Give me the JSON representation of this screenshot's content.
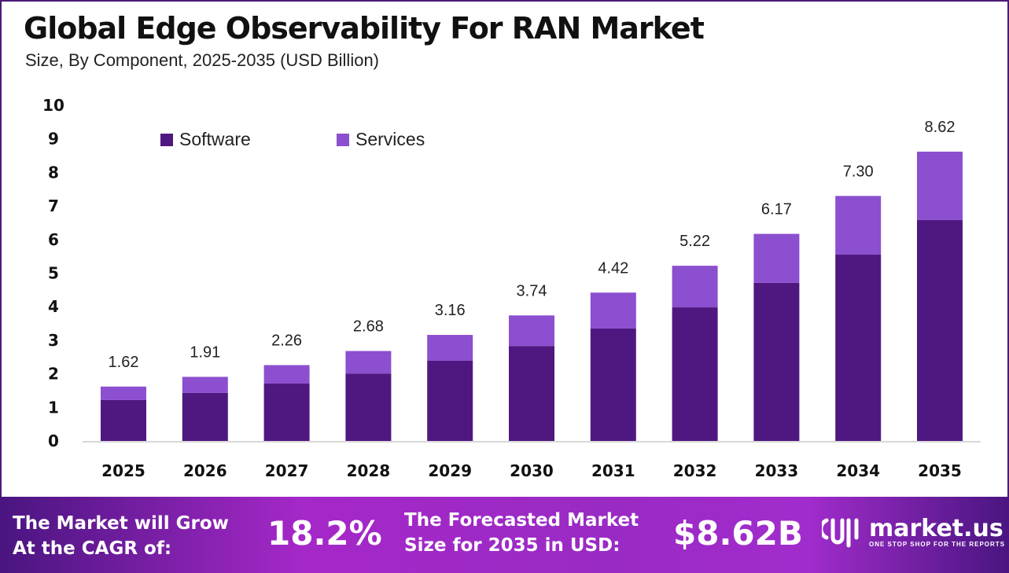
{
  "chart_data": {
    "type": "bar",
    "stacked": true,
    "title": "Global Edge Observability For RAN Market",
    "subtitle": "Size, By Component, 2025-2035 (USD Billion)",
    "categories": [
      "2025",
      "2026",
      "2027",
      "2028",
      "2029",
      "2030",
      "2031",
      "2032",
      "2033",
      "2034",
      "2035"
    ],
    "series": [
      {
        "name": "Software",
        "color": "#4f1880",
        "values": [
          1.22,
          1.43,
          1.71,
          2.01,
          2.39,
          2.83,
          3.35,
          3.98,
          4.71,
          5.55,
          6.58
        ]
      },
      {
        "name": "Services",
        "color": "#8c4fcf",
        "values": [
          0.4,
          0.48,
          0.55,
          0.67,
          0.77,
          0.91,
          1.07,
          1.24,
          1.46,
          1.75,
          2.04
        ]
      }
    ],
    "totals": [
      "1.62",
      "1.91",
      "2.26",
      "2.68",
      "3.16",
      "3.74",
      "4.42",
      "5.22",
      "6.17",
      "7.30",
      "8.62"
    ],
    "yticks": [
      "0",
      "1",
      "2",
      "3",
      "4",
      "5",
      "6",
      "7",
      "8",
      "9",
      "10"
    ],
    "ylim": [
      0,
      10
    ],
    "grid": false,
    "legend_position": "top-left"
  },
  "banner": {
    "cagr_label_1": "The Market will Grow",
    "cagr_label_2": "At the CAGR of:",
    "cagr_value": "18.2%",
    "forecast_label_1": "The Forecasted Market",
    "forecast_label_2": "Size for 2035 in USD:",
    "forecast_value": "$8.62B",
    "logo_text": "market.us",
    "logo_tagline": "ONE STOP SHOP FOR THE REPORTS"
  }
}
